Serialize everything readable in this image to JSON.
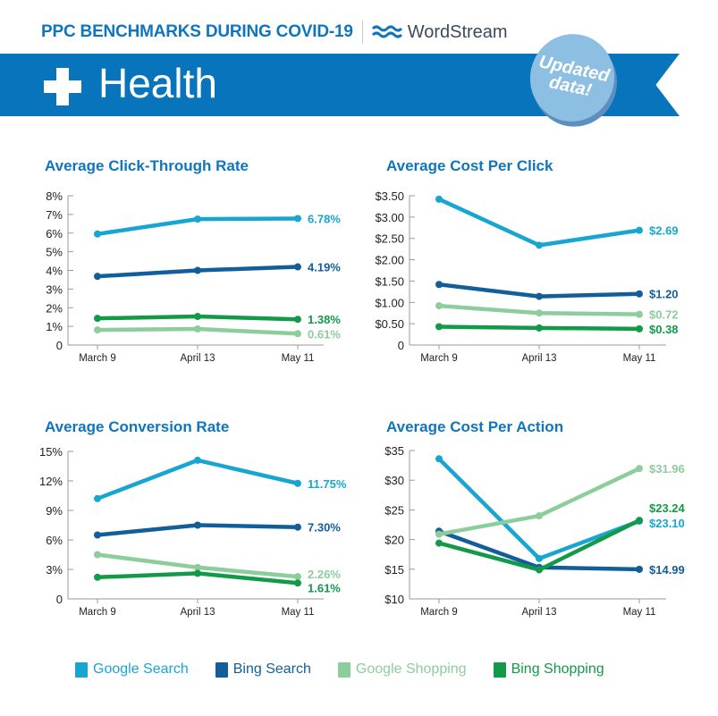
{
  "header": {
    "title": "PPC BENCHMARKS DURING COVID-19",
    "brand": "WordStream",
    "category": "Health",
    "category_icon": "plus-cross-icon",
    "badge": [
      "Updated",
      "data!"
    ]
  },
  "colors": {
    "Google Search": "#17a6d2",
    "Bing Search": "#125e9b",
    "Google Shopping": "#8ccd9b",
    "Bing Shopping": "#129a48",
    "banner": "#0874bc",
    "title": "#0f75bc"
  },
  "legend": [
    "Google Search",
    "Bing Search",
    "Google Shopping",
    "Bing Shopping"
  ],
  "chart_data": [
    {
      "type": "line",
      "title": "Average Click-Through Rate",
      "categories": [
        "March 9",
        "April 13",
        "May 11"
      ],
      "ylim": [
        0,
        8
      ],
      "yticks": [
        "0",
        "1%",
        "2%",
        "3%",
        "4%",
        "5%",
        "6%",
        "7%",
        "8%"
      ],
      "series": [
        {
          "name": "Google Search",
          "values": [
            5.95,
            6.75,
            6.78
          ],
          "label": "6.78%"
        },
        {
          "name": "Bing Search",
          "values": [
            3.68,
            4.0,
            4.19
          ],
          "label": "4.19%"
        },
        {
          "name": "Bing Shopping",
          "values": [
            1.43,
            1.53,
            1.38
          ],
          "label": "1.38%"
        },
        {
          "name": "Google Shopping",
          "values": [
            0.81,
            0.86,
            0.61
          ],
          "label": "0.61%"
        }
      ]
    },
    {
      "type": "line",
      "title": "Average Cost Per Click",
      "categories": [
        "March 9",
        "April 13",
        "May 11"
      ],
      "ylim": [
        0,
        3.5
      ],
      "yticks": [
        "0",
        "$0.50",
        "$1.00",
        "$1.50",
        "$2.00",
        "$2.50",
        "$3.00",
        "$3.50"
      ],
      "series": [
        {
          "name": "Google Search",
          "values": [
            3.42,
            2.34,
            2.69
          ],
          "label": "$2.69"
        },
        {
          "name": "Bing Search",
          "values": [
            1.42,
            1.14,
            1.2
          ],
          "label": "$1.20"
        },
        {
          "name": "Google Shopping",
          "values": [
            0.92,
            0.75,
            0.72
          ],
          "label": "$0.72"
        },
        {
          "name": "Bing Shopping",
          "values": [
            0.43,
            0.4,
            0.38
          ],
          "label": "$0.38"
        }
      ]
    },
    {
      "type": "line",
      "title": "Average Conversion Rate",
      "categories": [
        "March 9",
        "April 13",
        "May 11"
      ],
      "ylim": [
        0,
        15
      ],
      "yticks": [
        "0",
        "3%",
        "6%",
        "9%",
        "12%",
        "15%"
      ],
      "series": [
        {
          "name": "Google Search",
          "values": [
            10.2,
            14.1,
            11.75
          ],
          "label": "11.75%"
        },
        {
          "name": "Bing Search",
          "values": [
            6.5,
            7.5,
            7.3
          ],
          "label": "7.30%"
        },
        {
          "name": "Google Shopping",
          "values": [
            4.5,
            3.2,
            2.26
          ],
          "label": "2.26%"
        },
        {
          "name": "Bing Shopping",
          "values": [
            2.2,
            2.6,
            1.61
          ],
          "label": "1.61%"
        }
      ]
    },
    {
      "type": "line",
      "title": "Average Cost Per Action",
      "categories": [
        "March 9",
        "April 13",
        "May 11"
      ],
      "ylim": [
        10,
        35
      ],
      "yticks": [
        "$10",
        "$15",
        "$20",
        "$25",
        "$30",
        "$35"
      ],
      "series": [
        {
          "name": "Google Search",
          "values": [
            33.6,
            16.8,
            23.1
          ],
          "label": "$23.10"
        },
        {
          "name": "Bing Search",
          "values": [
            21.4,
            15.3,
            14.99
          ],
          "label": "$14.99"
        },
        {
          "name": "Google Shopping",
          "values": [
            20.9,
            24.0,
            31.96
          ],
          "label": "$31.96"
        },
        {
          "name": "Bing Shopping",
          "values": [
            19.4,
            14.9,
            23.24
          ],
          "label": "$23.24"
        }
      ]
    }
  ]
}
